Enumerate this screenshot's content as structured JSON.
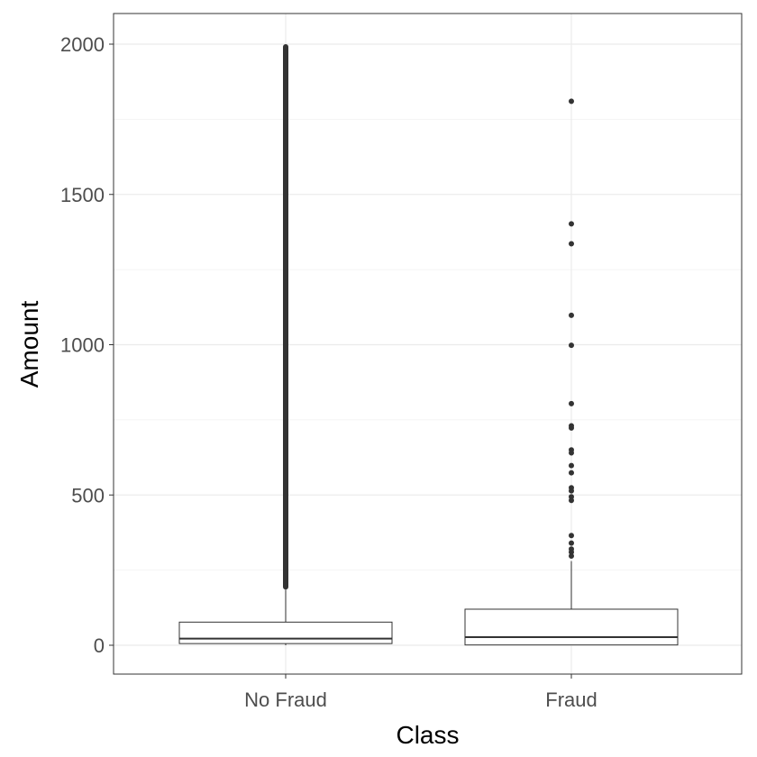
{
  "chart_data": {
    "type": "boxplot",
    "title": "",
    "xlabel": "Class",
    "ylabel": "Amount",
    "categories": [
      "No Fraud",
      "Fraud"
    ],
    "ylim": [
      -100,
      2100
    ],
    "yticks": [
      0,
      500,
      1000,
      1500,
      2000
    ],
    "grid": true,
    "colors": {
      "box_fill": "#ffffff",
      "box_stroke": "#333333",
      "point": "#333333",
      "grid": "#ebebeb",
      "panel_border": "#333333"
    },
    "boxes": [
      {
        "category": "No Fraud",
        "lower_whisker": 0,
        "q1": 5.6,
        "median": 22,
        "q3": 77,
        "upper_whisker": 185,
        "outlier_range": [
          185,
          1997
        ],
        "outliers": []
      },
      {
        "category": "Fraud",
        "lower_whisker": 0,
        "q1": 1,
        "median": 27,
        "q3": 120,
        "upper_whisker": 280,
        "outliers": [
          1810,
          1402,
          1336,
          1098,
          998,
          804,
          730,
          723,
          650,
          640,
          598,
          574,
          524,
          514,
          494,
          482,
          365,
          340,
          320,
          310,
          297
        ]
      }
    ]
  }
}
